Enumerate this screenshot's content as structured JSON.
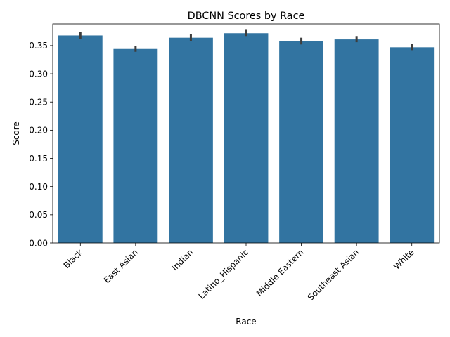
{
  "chart_data": {
    "type": "bar",
    "title": "DBCNN Scores by Race",
    "xlabel": "Race",
    "ylabel": "Score",
    "categories": [
      "Black",
      "East Asian",
      "Indian",
      "Latino_Hispanic",
      "Middle Eastern",
      "Southeast Asian",
      "White"
    ],
    "values": [
      0.368,
      0.344,
      0.364,
      0.372,
      0.358,
      0.361,
      0.347
    ],
    "error_low": [
      0.362,
      0.339,
      0.358,
      0.367,
      0.352,
      0.356,
      0.342
    ],
    "error_high": [
      0.374,
      0.349,
      0.371,
      0.378,
      0.364,
      0.367,
      0.353
    ],
    "yticks": [
      0.0,
      0.05,
      0.1,
      0.15,
      0.2,
      0.25,
      0.3,
      0.35
    ],
    "ytick_labels": [
      "0.00",
      "0.05",
      "0.10",
      "0.15",
      "0.20",
      "0.25",
      "0.30",
      "0.35"
    ],
    "ylim": [
      0,
      0.3885
    ],
    "grid": false,
    "legend": "none",
    "bar_color": "#3274a1",
    "error_color": "#3d3d3d"
  }
}
